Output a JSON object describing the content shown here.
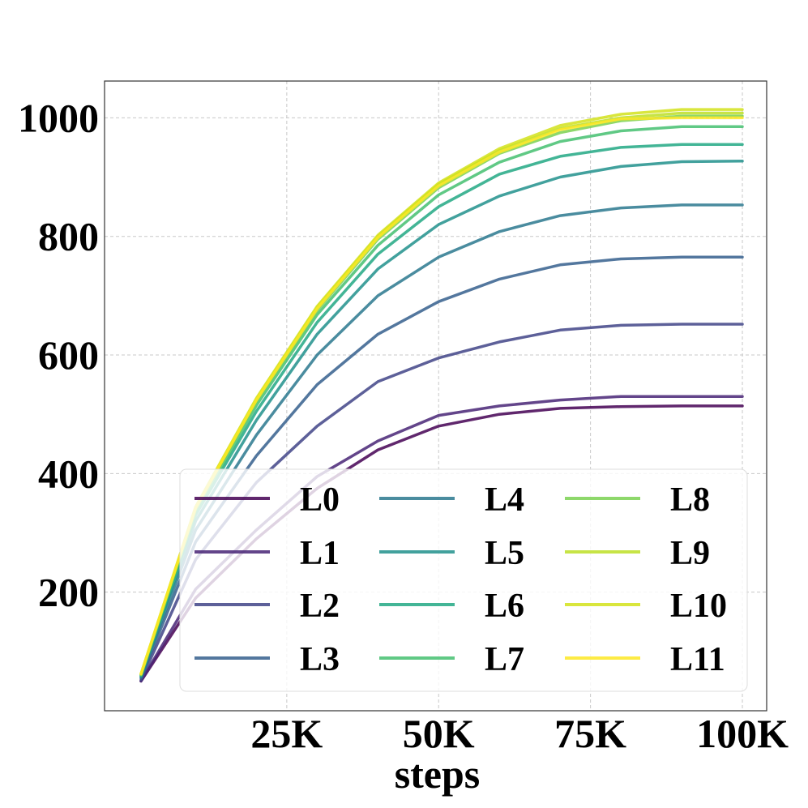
{
  "chart_data": {
    "type": "line",
    "title": "",
    "xlabel": "steps",
    "ylabel": "",
    "xlim": [
      -5000,
      104000
    ],
    "ylim": [
      0,
      1062
    ],
    "x_ticks": [
      25000,
      50000,
      75000,
      100000
    ],
    "x_tick_labels": [
      "25K",
      "50K",
      "75K",
      "100K"
    ],
    "y_ticks": [
      200,
      400,
      600,
      800,
      1000
    ],
    "y_tick_labels": [
      "200",
      "400",
      "600",
      "800",
      "1000"
    ],
    "grid": true,
    "legend": {
      "placement": "lower-right",
      "columns": 3
    },
    "x": [
      1000,
      10000,
      20000,
      30000,
      40000,
      50000,
      60000,
      70000,
      80000,
      90000,
      100000
    ],
    "series": [
      {
        "name": "L0",
        "color": "#440154",
        "values": [
          50,
          190,
          290,
          375,
          440,
          480,
          500,
          510,
          513,
          514,
          514
        ]
      },
      {
        "name": "L1",
        "color": "#482475",
        "values": [
          50,
          205,
          305,
          395,
          455,
          498,
          514,
          524,
          530,
          530,
          530
        ]
      },
      {
        "name": "L2",
        "color": "#414487",
        "values": [
          52,
          255,
          385,
          480,
          555,
          595,
          622,
          642,
          650,
          652,
          652
        ]
      },
      {
        "name": "L3",
        "color": "#355f8d",
        "values": [
          55,
          285,
          430,
          550,
          635,
          690,
          728,
          752,
          762,
          765,
          765
        ]
      },
      {
        "name": "L4",
        "color": "#2a788e",
        "values": [
          57,
          305,
          465,
          600,
          700,
          765,
          808,
          835,
          848,
          853,
          853
        ]
      },
      {
        "name": "L5",
        "color": "#21918c",
        "values": [
          58,
          320,
          490,
          635,
          745,
          820,
          868,
          900,
          918,
          926,
          927
        ]
      },
      {
        "name": "L6",
        "color": "#22a884",
        "values": [
          60,
          330,
          505,
          655,
          770,
          850,
          905,
          935,
          950,
          955,
          955
        ]
      },
      {
        "name": "L7",
        "color": "#44bf70",
        "values": [
          60,
          335,
          515,
          668,
          785,
          870,
          925,
          960,
          978,
          985,
          985
        ]
      },
      {
        "name": "L8",
        "color": "#7ad151",
        "values": [
          61,
          340,
          522,
          675,
          795,
          882,
          940,
          975,
          995,
          1003,
          1003
        ]
      },
      {
        "name": "L9",
        "color": "#bddf26",
        "values": [
          62,
          342,
          525,
          680,
          800,
          888,
          945,
          982,
          1000,
          1008,
          1008
        ]
      },
      {
        "name": "L10",
        "color": "#d2e21b",
        "values": [
          62,
          344,
          527,
          682,
          802,
          890,
          948,
          987,
          1006,
          1014,
          1014
        ]
      },
      {
        "name": "L11",
        "color": "#fde725",
        "values": [
          62,
          342,
          524,
          678,
          798,
          885,
          942,
          980,
          998,
          1000,
          1000
        ]
      }
    ]
  }
}
